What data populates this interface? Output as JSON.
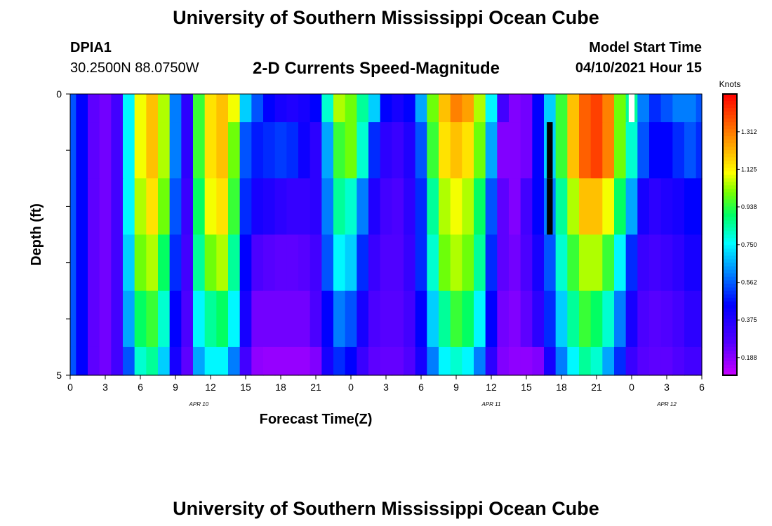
{
  "header": {
    "title_top": "University of Southern Mississippi Ocean Cube",
    "station": "DPIA1",
    "coords": "30.2500N  88.0750W",
    "subtitle": "2-D Currents Speed-Magnitude",
    "model_start_label": "Model Start Time",
    "model_start_value": "04/10/2021 Hour 15"
  },
  "footer": {
    "title_bottom": "University of Southern Mississippi Ocean Cube"
  },
  "chart_data": {
    "type": "heatmap",
    "xlabel": "Forecast Time(Z)",
    "ylabel": "Depth (ft)",
    "ylim": [
      0,
      5
    ],
    "y_ticks": [
      "0",
      "5"
    ],
    "x_tick_labels": [
      "0",
      "3",
      "6",
      "9",
      "12",
      "15",
      "18",
      "21",
      "0",
      "3",
      "6",
      "9",
      "12",
      "15",
      "18",
      "21",
      "0",
      "3",
      "6"
    ],
    "date_labels": [
      {
        "text": "APR  10",
        "hour": 11
      },
      {
        "text": "APR  11",
        "hour": 36
      },
      {
        "text": "APR  12",
        "hour": 51
      }
    ],
    "x_range_hours": [
      0,
      54
    ],
    "colorbar": {
      "unit": "Knots",
      "ticks": [
        "1.312",
        "1.125",
        "0.938",
        "0.750",
        "0.562",
        "0.375",
        "0.188"
      ],
      "range": [
        0.1,
        1.5
      ]
    },
    "depth_layers": [
      0.25,
      0.75,
      1.75,
      2.75,
      3.75,
      4.5
    ],
    "layer_bounds": [
      0,
      0.5,
      1.5,
      2.5,
      3.5,
      4.5,
      5.0
    ],
    "time_hours": [
      0,
      1,
      2,
      3,
      4,
      5,
      6,
      7,
      8,
      9,
      10,
      11,
      12,
      13,
      14,
      15,
      16,
      17,
      18,
      19,
      20,
      21,
      22,
      23,
      24,
      25,
      26,
      27,
      28,
      29,
      30,
      31,
      32,
      33,
      34,
      35,
      36,
      37,
      38,
      39,
      40,
      41,
      42,
      43,
      44,
      45,
      46,
      47,
      48,
      49,
      50,
      51,
      52,
      53,
      54
    ],
    "speed_knots": [
      [
        0.55,
        0.45,
        0.25,
        0.22,
        0.3,
        0.75,
        1.1,
        1.2,
        1.05,
        0.6,
        0.35,
        0.95,
        1.15,
        1.2,
        1.1,
        0.7,
        0.55,
        0.45,
        0.4,
        0.38,
        0.4,
        0.45,
        0.8,
        1.05,
        1.0,
        0.85,
        0.7,
        0.45,
        0.4,
        0.45,
        0.65,
        1.0,
        1.2,
        1.3,
        1.25,
        1.05,
        0.75,
        0.3,
        0.2,
        0.22,
        0.45,
        0.7,
        0.95,
        1.2,
        1.35,
        1.4,
        1.3,
        1.0,
        0.85,
        0.6,
        0.5,
        0.55,
        0.6,
        0.6,
        0.55
      ],
      [
        0.55,
        0.45,
        0.25,
        0.22,
        0.3,
        0.75,
        1.1,
        1.2,
        1.05,
        0.6,
        0.35,
        0.95,
        1.15,
        1.2,
        1.0,
        0.55,
        0.48,
        0.5,
        0.52,
        0.5,
        0.42,
        0.35,
        0.65,
        0.95,
        1.0,
        0.8,
        0.5,
        0.35,
        0.32,
        0.38,
        0.55,
        0.95,
        1.15,
        1.2,
        1.15,
        1.0,
        0.65,
        0.2,
        0.2,
        0.22,
        0.45,
        0.7,
        0.95,
        1.2,
        1.35,
        1.4,
        1.3,
        1.0,
        0.8,
        0.55,
        0.45,
        0.45,
        0.5,
        0.55,
        0.5
      ],
      [
        0.55,
        0.45,
        0.25,
        0.22,
        0.3,
        0.75,
        1.05,
        1.15,
        1.0,
        0.55,
        0.32,
        0.9,
        1.1,
        1.15,
        0.95,
        0.5,
        0.4,
        0.38,
        0.35,
        0.33,
        0.33,
        0.35,
        0.6,
        0.85,
        0.8,
        0.6,
        0.38,
        0.3,
        0.28,
        0.35,
        0.5,
        0.85,
        1.05,
        1.1,
        1.05,
        0.9,
        0.55,
        0.25,
        0.2,
        0.3,
        0.45,
        0.6,
        0.85,
        1.05,
        1.2,
        1.2,
        1.1,
        0.9,
        0.65,
        0.4,
        0.35,
        0.38,
        0.4,
        0.45,
        0.45
      ],
      [
        0.55,
        0.45,
        0.25,
        0.22,
        0.3,
        0.7,
        1.0,
        1.05,
        0.9,
        0.5,
        0.3,
        0.85,
        1.0,
        1.05,
        0.85,
        0.45,
        0.28,
        0.26,
        0.25,
        0.25,
        0.26,
        0.3,
        0.55,
        0.75,
        0.7,
        0.5,
        0.32,
        0.27,
        0.27,
        0.33,
        0.5,
        0.8,
        1.0,
        1.05,
        1.0,
        0.85,
        0.5,
        0.25,
        0.22,
        0.28,
        0.4,
        0.55,
        0.8,
        0.95,
        1.05,
        1.05,
        0.95,
        0.75,
        0.5,
        0.32,
        0.3,
        0.32,
        0.35,
        0.4,
        0.4
      ],
      [
        0.55,
        0.45,
        0.25,
        0.22,
        0.3,
        0.65,
        0.9,
        0.95,
        0.8,
        0.45,
        0.28,
        0.75,
        0.85,
        0.9,
        0.75,
        0.4,
        0.22,
        0.22,
        0.22,
        0.22,
        0.22,
        0.28,
        0.45,
        0.6,
        0.55,
        0.4,
        0.28,
        0.26,
        0.26,
        0.3,
        0.45,
        0.7,
        0.85,
        0.95,
        0.9,
        0.75,
        0.45,
        0.22,
        0.2,
        0.25,
        0.35,
        0.5,
        0.7,
        0.85,
        0.95,
        0.9,
        0.8,
        0.6,
        0.4,
        0.28,
        0.26,
        0.27,
        0.3,
        0.35,
        0.35
      ],
      [
        0.55,
        0.45,
        0.25,
        0.22,
        0.3,
        0.55,
        0.8,
        0.85,
        0.7,
        0.4,
        0.25,
        0.65,
        0.75,
        0.75,
        0.6,
        0.3,
        0.18,
        0.17,
        0.17,
        0.17,
        0.17,
        0.2,
        0.4,
        0.5,
        0.45,
        0.32,
        0.25,
        0.24,
        0.24,
        0.27,
        0.4,
        0.6,
        0.75,
        0.8,
        0.75,
        0.6,
        0.35,
        0.2,
        0.18,
        0.18,
        0.2,
        0.4,
        0.6,
        0.75,
        0.85,
        0.8,
        0.65,
        0.5,
        0.32,
        0.26,
        0.25,
        0.25,
        0.27,
        0.3,
        0.3
      ]
    ],
    "missing_cells": [
      {
        "hour": 48,
        "layer": 0,
        "color": "#ffffff"
      },
      {
        "hour": 41,
        "layer": 1,
        "color": "#000000"
      },
      {
        "hour": 41,
        "layer": 2,
        "color": "#000000"
      }
    ]
  }
}
